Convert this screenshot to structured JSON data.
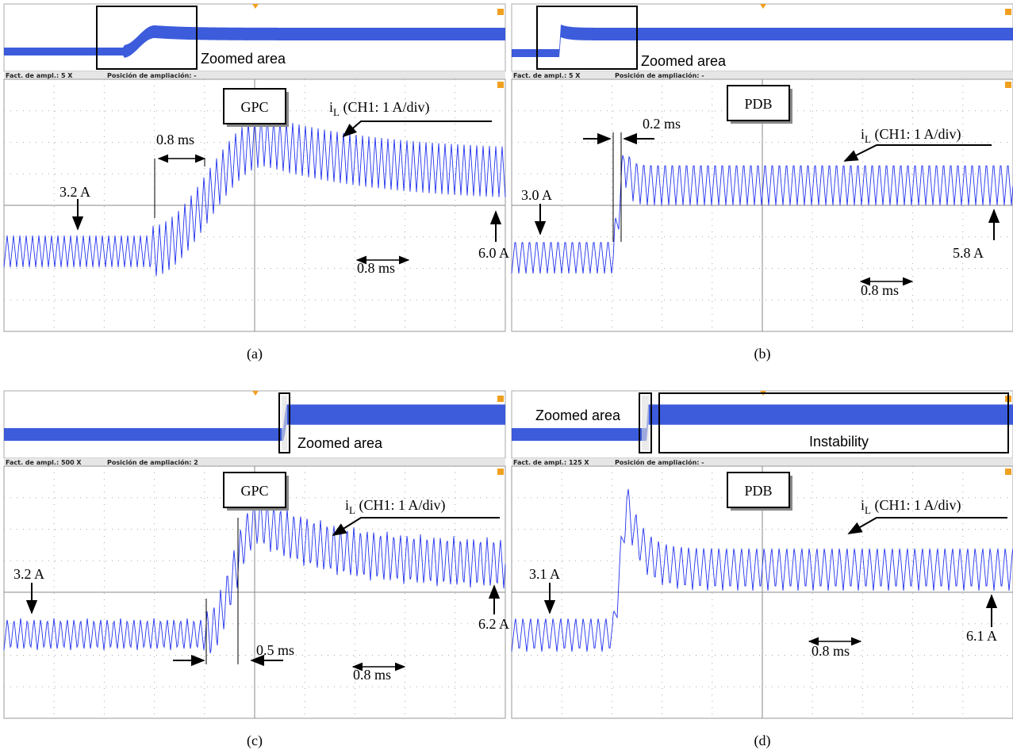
{
  "panels": [
    {
      "caption": "(a)",
      "zoom_label": "Zoomed area",
      "status_left": "Fact. de ampl.: 5 X",
      "status_right": "Posición de ampliación: -",
      "controller": "GPC",
      "trace_main": "i",
      "trace_sub": "L",
      "trace_rest": " (CH1: 1 A/div)",
      "annotations": [
        "3.2 A",
        "0.8 ms",
        "6.0 A",
        "0.8 ms"
      ]
    },
    {
      "caption": "(b)",
      "zoom_label": "Zoomed area",
      "status_left": "Fact. de ampl.: 5 X",
      "status_right": "Posición de ampliación: -",
      "controller": "PDB",
      "trace_main": "i",
      "trace_sub": "L",
      "trace_rest": " (CH1: 1 A/div)",
      "annotations": [
        "0.2 ms",
        "3.0 A",
        "5.8 A",
        "0.8 ms"
      ]
    },
    {
      "caption": "(c)",
      "zoom_label": "Zoomed area",
      "status_left": "Fact. de ampl.: 500 X",
      "status_right": "Posición de ampliación: 2",
      "controller": "GPC",
      "trace_main": "i",
      "trace_sub": "L",
      "trace_rest": " (CH1: 1 A/div)",
      "annotations": [
        "3.2 A",
        "0.5 ms",
        "6.2 A",
        "0.8 ms"
      ]
    },
    {
      "caption": "(d)",
      "zoom_label": "Zoomed area",
      "status_left": "Fact. de ampl.: 125 X",
      "status_right": "Posición de ampliación: -",
      "controller": "PDB",
      "trace_main": "i",
      "trace_sub": "L",
      "trace_rest": " (CH1: 1 A/div)",
      "annotations": [
        "3.1 A",
        "6.1 A",
        "0.8 ms"
      ],
      "extra_label": "Instability"
    }
  ]
}
